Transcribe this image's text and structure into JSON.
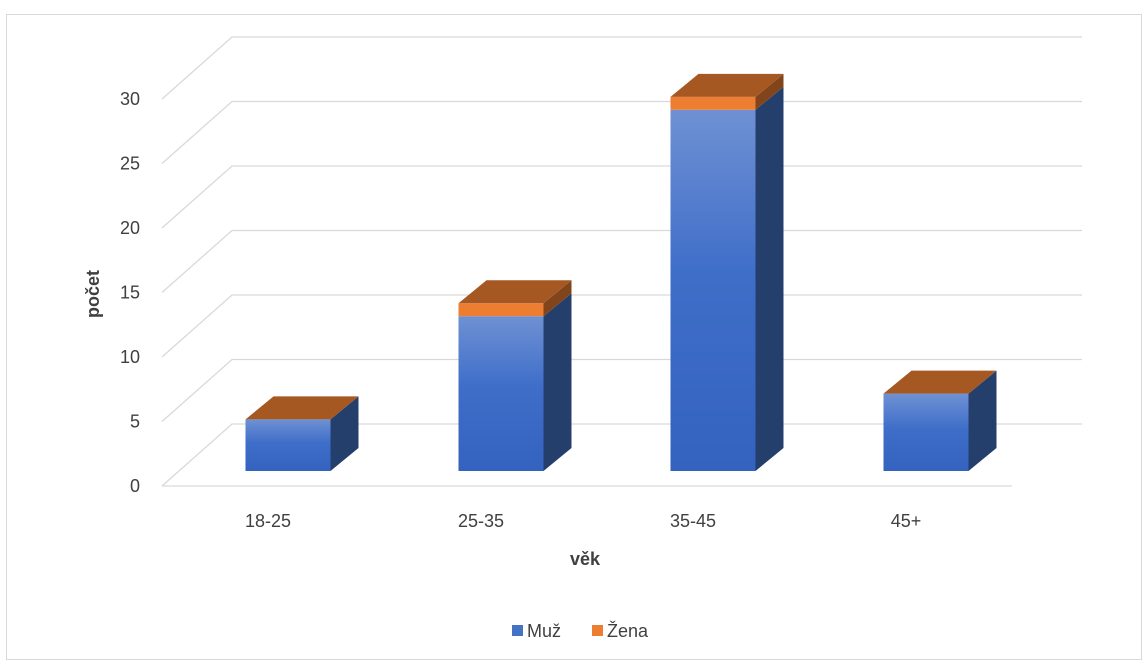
{
  "chart_data": {
    "type": "bar",
    "stacked": true,
    "three_d": true,
    "title": "",
    "xlabel": "věk",
    "ylabel": "počet",
    "categories": [
      "18-25",
      "25-35",
      "35-45",
      "45+"
    ],
    "series": [
      {
        "name": "Muž",
        "values": [
          4,
          12,
          28,
          6
        ],
        "color": "#4472c4"
      },
      {
        "name": "Žena",
        "values": [
          0,
          1,
          1,
          0
        ],
        "color": "#ed7d31"
      }
    ],
    "ylim": [
      0,
      30
    ],
    "yticks": [
      0,
      5,
      10,
      15,
      20,
      25,
      30
    ],
    "grid": true,
    "legend_position": "bottom"
  }
}
